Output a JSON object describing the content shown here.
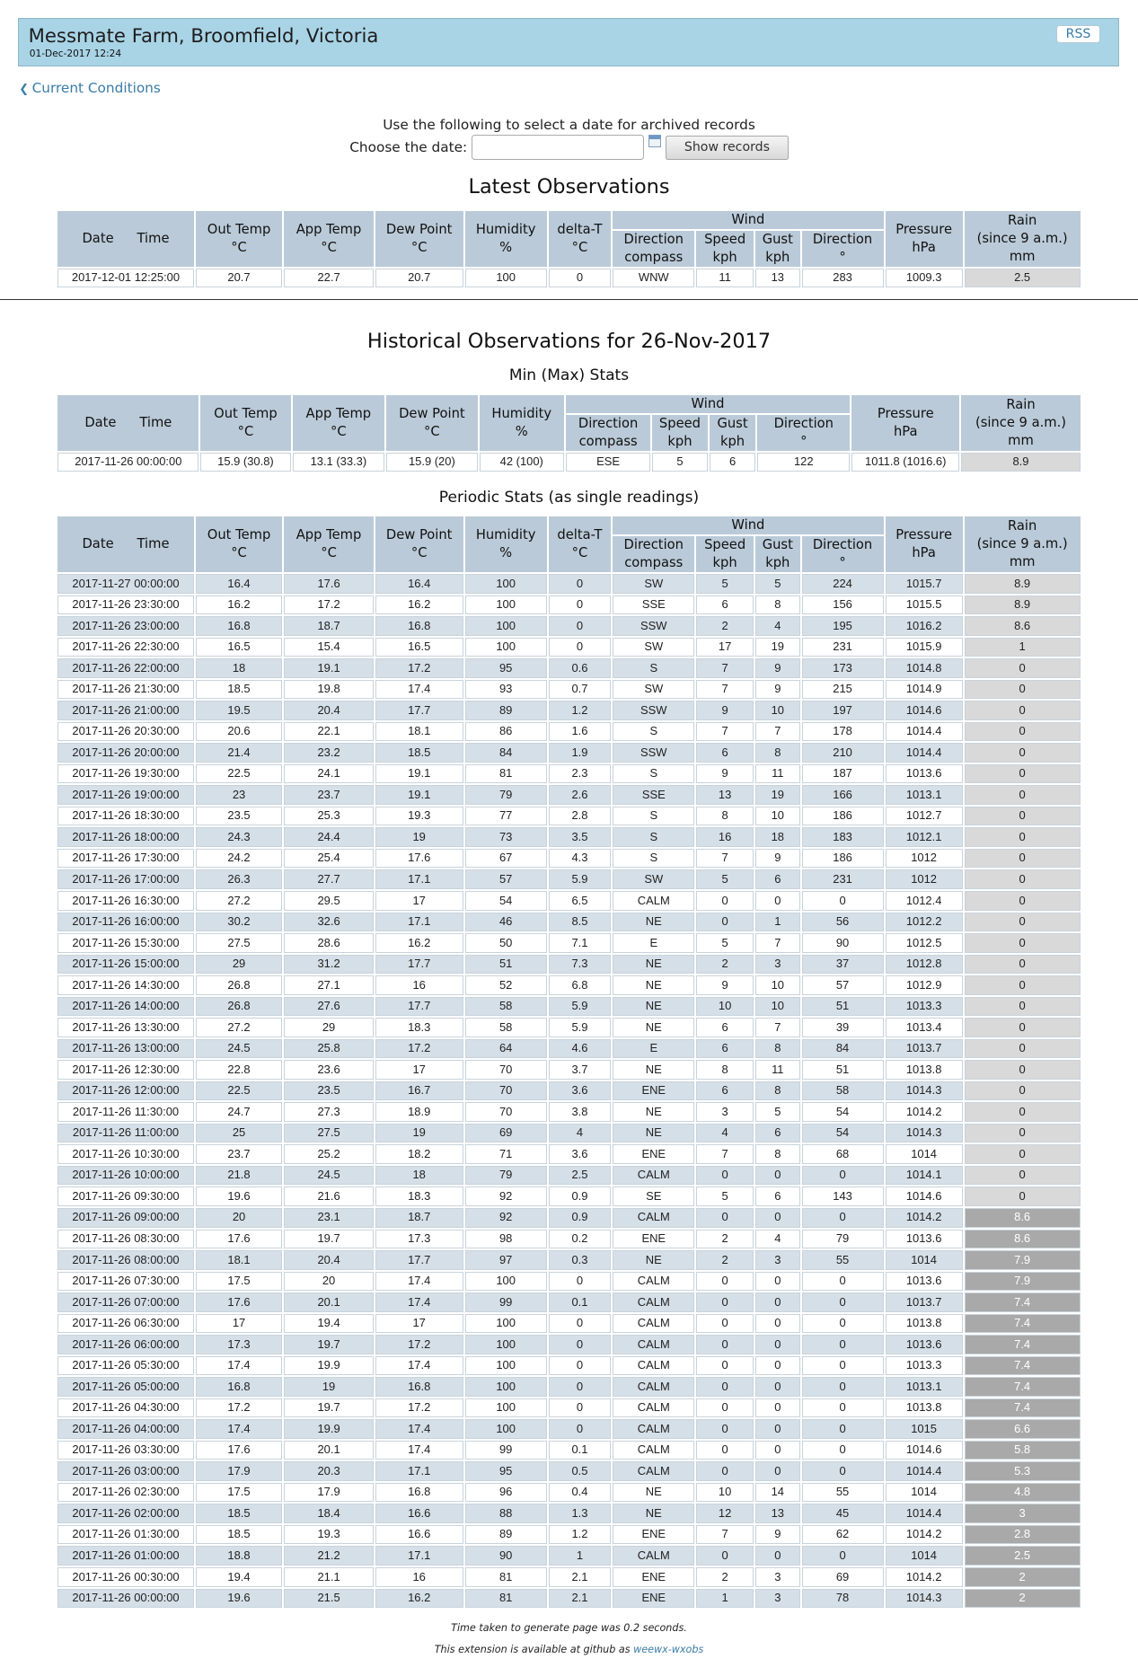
{
  "header": {
    "title": "Messmate Farm, Broomfield, Victoria",
    "datetime": "01-Dec-2017 12:24",
    "rss_label": "RSS"
  },
  "nav": {
    "back_label": "Current Conditions"
  },
  "selector": {
    "prompt": "Use the following to select a date for archived records",
    "choose_label": "Choose the date:",
    "date_value": "",
    "button_label": "Show records"
  },
  "headers": {
    "date": "Date",
    "time": "Time",
    "out_temp": "Out Temp",
    "app_temp": "App Temp",
    "dew_point": "Dew Point",
    "humidity": "Humidity",
    "delta_t": "delta-T",
    "wind": "Wind",
    "dir_compass_1": "Direction",
    "dir_compass_2": "compass",
    "speed": "Speed",
    "gust": "Gust",
    "direction": "Direction",
    "pressure": "Pressure",
    "rain_1": "Rain",
    "rain_2": "(since 9 a.m.)",
    "unit_c": "°C",
    "unit_pct": "%",
    "unit_kph": "kph",
    "unit_deg": "°",
    "unit_hpa": "hPa",
    "unit_mm": "mm"
  },
  "latest": {
    "title": "Latest Observations",
    "row": [
      "2017-12-01 12:25:00",
      "20.7",
      "22.7",
      "20.7",
      "100",
      "0",
      "WNW",
      "11",
      "13",
      "283",
      "1009.3",
      "2.5"
    ]
  },
  "historical": {
    "title": "Historical Observations for 26-Nov-2017",
    "minmax_title": "Min (Max) Stats",
    "minmax_row": [
      "2017-11-26 00:00:00",
      "15.9 (30.8)",
      "13.1 (33.3)",
      "15.9 (20)",
      "42 (100)",
      "ESE",
      "5",
      "6",
      "122",
      "1011.8 (1016.6)",
      "8.9"
    ],
    "periodic_title": "Periodic Stats (as single readings)",
    "rows": [
      [
        "2017-11-27 00:00:00",
        "16.4",
        "17.6",
        "16.4",
        "100",
        "0",
        "SW",
        "5",
        "5",
        "224",
        "1015.7",
        "8.9"
      ],
      [
        "2017-11-26 23:30:00",
        "16.2",
        "17.2",
        "16.2",
        "100",
        "0",
        "SSE",
        "6",
        "8",
        "156",
        "1015.5",
        "8.9"
      ],
      [
        "2017-11-26 23:00:00",
        "16.8",
        "18.7",
        "16.8",
        "100",
        "0",
        "SSW",
        "2",
        "4",
        "195",
        "1016.2",
        "8.6"
      ],
      [
        "2017-11-26 22:30:00",
        "16.5",
        "15.4",
        "16.5",
        "100",
        "0",
        "SW",
        "17",
        "19",
        "231",
        "1015.9",
        "1"
      ],
      [
        "2017-11-26 22:00:00",
        "18",
        "19.1",
        "17.2",
        "95",
        "0.6",
        "S",
        "7",
        "9",
        "173",
        "1014.8",
        "0"
      ],
      [
        "2017-11-26 21:30:00",
        "18.5",
        "19.8",
        "17.4",
        "93",
        "0.7",
        "SW",
        "7",
        "9",
        "215",
        "1014.9",
        "0"
      ],
      [
        "2017-11-26 21:00:00",
        "19.5",
        "20.4",
        "17.7",
        "89",
        "1.2",
        "SSW",
        "9",
        "10",
        "197",
        "1014.6",
        "0"
      ],
      [
        "2017-11-26 20:30:00",
        "20.6",
        "22.1",
        "18.1",
        "86",
        "1.6",
        "S",
        "7",
        "7",
        "178",
        "1014.4",
        "0"
      ],
      [
        "2017-11-26 20:00:00",
        "21.4",
        "23.2",
        "18.5",
        "84",
        "1.9",
        "SSW",
        "6",
        "8",
        "210",
        "1014.4",
        "0"
      ],
      [
        "2017-11-26 19:30:00",
        "22.5",
        "24.1",
        "19.1",
        "81",
        "2.3",
        "S",
        "9",
        "11",
        "187",
        "1013.6",
        "0"
      ],
      [
        "2017-11-26 19:00:00",
        "23",
        "23.7",
        "19.1",
        "79",
        "2.6",
        "SSE",
        "13",
        "19",
        "166",
        "1013.1",
        "0"
      ],
      [
        "2017-11-26 18:30:00",
        "23.5",
        "25.3",
        "19.3",
        "77",
        "2.8",
        "S",
        "8",
        "10",
        "186",
        "1012.7",
        "0"
      ],
      [
        "2017-11-26 18:00:00",
        "24.3",
        "24.4",
        "19",
        "73",
        "3.5",
        "S",
        "16",
        "18",
        "183",
        "1012.1",
        "0"
      ],
      [
        "2017-11-26 17:30:00",
        "24.2",
        "25.4",
        "17.6",
        "67",
        "4.3",
        "S",
        "7",
        "9",
        "186",
        "1012",
        "0"
      ],
      [
        "2017-11-26 17:00:00",
        "26.3",
        "27.7",
        "17.1",
        "57",
        "5.9",
        "SW",
        "5",
        "6",
        "231",
        "1012",
        "0"
      ],
      [
        "2017-11-26 16:30:00",
        "27.2",
        "29.5",
        "17",
        "54",
        "6.5",
        "CALM",
        "0",
        "0",
        "0",
        "1012.4",
        "0"
      ],
      [
        "2017-11-26 16:00:00",
        "30.2",
        "32.6",
        "17.1",
        "46",
        "8.5",
        "NE",
        "0",
        "1",
        "56",
        "1012.2",
        "0"
      ],
      [
        "2017-11-26 15:30:00",
        "27.5",
        "28.6",
        "16.2",
        "50",
        "7.1",
        "E",
        "5",
        "7",
        "90",
        "1012.5",
        "0"
      ],
      [
        "2017-11-26 15:00:00",
        "29",
        "31.2",
        "17.7",
        "51",
        "7.3",
        "NE",
        "2",
        "3",
        "37",
        "1012.8",
        "0"
      ],
      [
        "2017-11-26 14:30:00",
        "26.8",
        "27.1",
        "16",
        "52",
        "6.8",
        "NE",
        "9",
        "10",
        "57",
        "1012.9",
        "0"
      ],
      [
        "2017-11-26 14:00:00",
        "26.8",
        "27.6",
        "17.7",
        "58",
        "5.9",
        "NE",
        "10",
        "10",
        "51",
        "1013.3",
        "0"
      ],
      [
        "2017-11-26 13:30:00",
        "27.2",
        "29",
        "18.3",
        "58",
        "5.9",
        "NE",
        "6",
        "7",
        "39",
        "1013.4",
        "0"
      ],
      [
        "2017-11-26 13:00:00",
        "24.5",
        "25.8",
        "17.2",
        "64",
        "4.6",
        "E",
        "6",
        "8",
        "84",
        "1013.7",
        "0"
      ],
      [
        "2017-11-26 12:30:00",
        "22.8",
        "23.6",
        "17",
        "70",
        "3.7",
        "NE",
        "8",
        "11",
        "51",
        "1013.8",
        "0"
      ],
      [
        "2017-11-26 12:00:00",
        "22.5",
        "23.5",
        "16.7",
        "70",
        "3.6",
        "ENE",
        "6",
        "8",
        "58",
        "1014.3",
        "0"
      ],
      [
        "2017-11-26 11:30:00",
        "24.7",
        "27.3",
        "18.9",
        "70",
        "3.8",
        "NE",
        "3",
        "5",
        "54",
        "1014.2",
        "0"
      ],
      [
        "2017-11-26 11:00:00",
        "25",
        "27.5",
        "19",
        "69",
        "4",
        "NE",
        "4",
        "6",
        "54",
        "1014.3",
        "0"
      ],
      [
        "2017-11-26 10:30:00",
        "23.7",
        "25.2",
        "18.2",
        "71",
        "3.6",
        "ENE",
        "7",
        "8",
        "68",
        "1014",
        "0"
      ],
      [
        "2017-11-26 10:00:00",
        "21.8",
        "24.5",
        "18",
        "79",
        "2.5",
        "CALM",
        "0",
        "0",
        "0",
        "1014.1",
        "0"
      ],
      [
        "2017-11-26 09:30:00",
        "19.6",
        "21.6",
        "18.3",
        "92",
        "0.9",
        "SE",
        "5",
        "6",
        "143",
        "1014.6",
        "0"
      ],
      [
        "2017-11-26 09:00:00",
        "20",
        "23.1",
        "18.7",
        "92",
        "0.9",
        "CALM",
        "0",
        "0",
        "0",
        "1014.2",
        "8.6"
      ],
      [
        "2017-11-26 08:30:00",
        "17.6",
        "19.7",
        "17.3",
        "98",
        "0.2",
        "ENE",
        "2",
        "4",
        "79",
        "1013.6",
        "8.6"
      ],
      [
        "2017-11-26 08:00:00",
        "18.1",
        "20.4",
        "17.7",
        "97",
        "0.3",
        "NE",
        "2",
        "3",
        "55",
        "1014",
        "7.9"
      ],
      [
        "2017-11-26 07:30:00",
        "17.5",
        "20",
        "17.4",
        "100",
        "0",
        "CALM",
        "0",
        "0",
        "0",
        "1013.6",
        "7.9"
      ],
      [
        "2017-11-26 07:00:00",
        "17.6",
        "20.1",
        "17.4",
        "99",
        "0.1",
        "CALM",
        "0",
        "0",
        "0",
        "1013.7",
        "7.4"
      ],
      [
        "2017-11-26 06:30:00",
        "17",
        "19.4",
        "17",
        "100",
        "0",
        "CALM",
        "0",
        "0",
        "0",
        "1013.8",
        "7.4"
      ],
      [
        "2017-11-26 06:00:00",
        "17.3",
        "19.7",
        "17.2",
        "100",
        "0",
        "CALM",
        "0",
        "0",
        "0",
        "1013.6",
        "7.4"
      ],
      [
        "2017-11-26 05:30:00",
        "17.4",
        "19.9",
        "17.4",
        "100",
        "0",
        "CALM",
        "0",
        "0",
        "0",
        "1013.3",
        "7.4"
      ],
      [
        "2017-11-26 05:00:00",
        "16.8",
        "19",
        "16.8",
        "100",
        "0",
        "CALM",
        "0",
        "0",
        "0",
        "1013.1",
        "7.4"
      ],
      [
        "2017-11-26 04:30:00",
        "17.2",
        "19.7",
        "17.2",
        "100",
        "0",
        "CALM",
        "0",
        "0",
        "0",
        "1013.8",
        "7.4"
      ],
      [
        "2017-11-26 04:00:00",
        "17.4",
        "19.9",
        "17.4",
        "100",
        "0",
        "CALM",
        "0",
        "0",
        "0",
        "1015",
        "6.6"
      ],
      [
        "2017-11-26 03:30:00",
        "17.6",
        "20.1",
        "17.4",
        "99",
        "0.1",
        "CALM",
        "0",
        "0",
        "0",
        "1014.6",
        "5.8"
      ],
      [
        "2017-11-26 03:00:00",
        "17.9",
        "20.3",
        "17.1",
        "95",
        "0.5",
        "CALM",
        "0",
        "0",
        "0",
        "1014.4",
        "5.3"
      ],
      [
        "2017-11-26 02:30:00",
        "17.5",
        "17.9",
        "16.8",
        "96",
        "0.4",
        "NE",
        "10",
        "14",
        "55",
        "1014",
        "4.8"
      ],
      [
        "2017-11-26 02:00:00",
        "18.5",
        "18.4",
        "16.6",
        "88",
        "1.3",
        "NE",
        "12",
        "13",
        "45",
        "1014.4",
        "3"
      ],
      [
        "2017-11-26 01:30:00",
        "18.5",
        "19.3",
        "16.6",
        "89",
        "1.2",
        "ENE",
        "7",
        "9",
        "62",
        "1014.2",
        "2.8"
      ],
      [
        "2017-11-26 01:00:00",
        "18.8",
        "21.2",
        "17.1",
        "90",
        "1",
        "CALM",
        "0",
        "0",
        "0",
        "1014",
        "2.5"
      ],
      [
        "2017-11-26 00:30:00",
        "19.4",
        "21.1",
        "16",
        "81",
        "2.1",
        "ENE",
        "2",
        "3",
        "69",
        "1014.2",
        "2"
      ],
      [
        "2017-11-26 00:00:00",
        "19.6",
        "21.5",
        "16.2",
        "81",
        "2.1",
        "ENE",
        "1",
        "3",
        "78",
        "1014.3",
        "2"
      ]
    ]
  },
  "footer": {
    "timing": "Time taken to generate page was 0.2 seconds.",
    "availability_prefix": "This extension is available at github as",
    "link_label": "weewx-wxobs"
  }
}
